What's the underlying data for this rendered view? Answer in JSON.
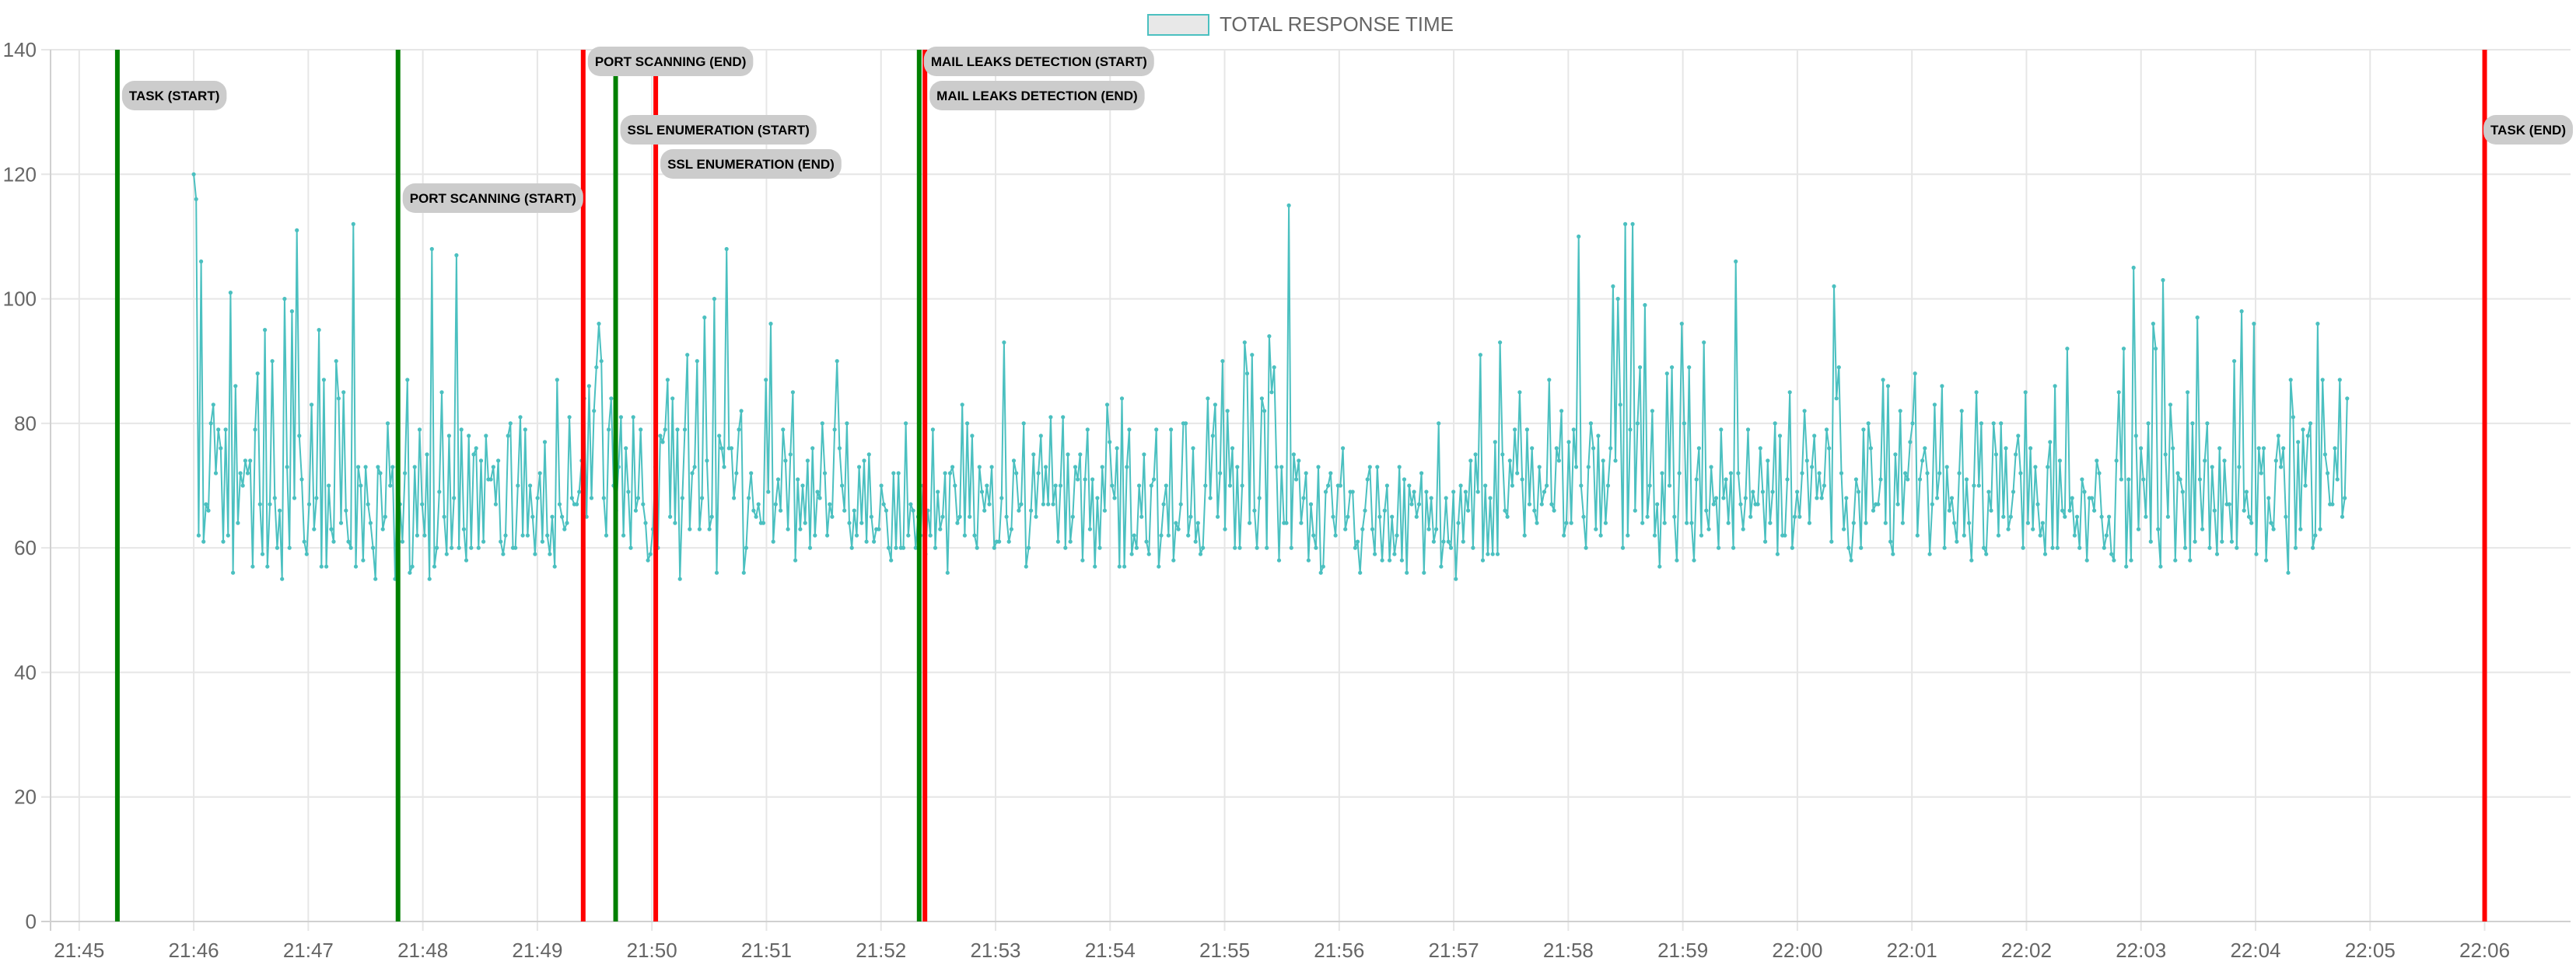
{
  "chart_data": {
    "type": "line",
    "legend": {
      "position": "top",
      "label": "TOTAL RESPONSE TIME"
    },
    "series": [
      {
        "name": "TOTAL RESPONSE TIME",
        "color": "#4bc0c0",
        "start_time": "21:46:00",
        "end_time": "22:04:48",
        "values": [
          120,
          116,
          62,
          106,
          61,
          67,
          66,
          80,
          83,
          72,
          79,
          76,
          61,
          79,
          62,
          101,
          56,
          86,
          64,
          72,
          70,
          74,
          72,
          74,
          57,
          79,
          88,
          67,
          59,
          95,
          57,
          67,
          90,
          68,
          60,
          66,
          55,
          100,
          73,
          60,
          98,
          68,
          111,
          78,
          71,
          61,
          59,
          67,
          83,
          63,
          68,
          95,
          57,
          87,
          57,
          70,
          63,
          61,
          90,
          84,
          64,
          85,
          66,
          61,
          60,
          112,
          57,
          73,
          70,
          58,
          73,
          67,
          64,
          60,
          55,
          73,
          72,
          63,
          65,
          80,
          70,
          73,
          55,
          73,
          67,
          61,
          72,
          87,
          56,
          57,
          73,
          62,
          79,
          67,
          62,
          75,
          55,
          108,
          57,
          60,
          69,
          85,
          65,
          59,
          78,
          60,
          68,
          107,
          60,
          79,
          63,
          58,
          78,
          60,
          75,
          76,
          60,
          74,
          61,
          78,
          71,
          71,
          73,
          67,
          74,
          61,
          59,
          62,
          78,
          80,
          60,
          60,
          70,
          81,
          62,
          79,
          62,
          70,
          65,
          59,
          68,
          72,
          61,
          77,
          62,
          59,
          65,
          57,
          87,
          67,
          65,
          63,
          64,
          81,
          68,
          67,
          67,
          69,
          74,
          84,
          65,
          86,
          68,
          82,
          89,
          96,
          90,
          68,
          62,
          79,
          84,
          70,
          66,
          73,
          81,
          62,
          76,
          69,
          60,
          81,
          66,
          68,
          79,
          67,
          64,
          58,
          59,
          63,
          73,
          60,
          78,
          77,
          79,
          87,
          65,
          84,
          64,
          79,
          55,
          68,
          79,
          91,
          63,
          72,
          73,
          90,
          63,
          68,
          97,
          74,
          63,
          65,
          100,
          56,
          78,
          76,
          73,
          108,
          76,
          76,
          68,
          72,
          79,
          82,
          56,
          60,
          68,
          72,
          66,
          65,
          67,
          64,
          64,
          87,
          69,
          96,
          61,
          67,
          71,
          66,
          79,
          74,
          63,
          75,
          85,
          58,
          71,
          63,
          70,
          64,
          74,
          60,
          76,
          62,
          69,
          68,
          80,
          72,
          62,
          67,
          65,
          79,
          90,
          76,
          70,
          66,
          80,
          64,
          60,
          66,
          62,
          73,
          64,
          74,
          61,
          75,
          65,
          61,
          63,
          63,
          70,
          67,
          66,
          60,
          58,
          72,
          60,
          72,
          60,
          60,
          80,
          62,
          67,
          66,
          60,
          65,
          62,
          70,
          59,
          66,
          62,
          79,
          60,
          69,
          63,
          65,
          72,
          56,
          72,
          73,
          70,
          64,
          65,
          83,
          62,
          80,
          65,
          78,
          62,
          60,
          73,
          69,
          66,
          70,
          67,
          73,
          60,
          61,
          61,
          68,
          93,
          65,
          61,
          63,
          74,
          72,
          66,
          67,
          80,
          57,
          60,
          66,
          75,
          65,
          72,
          78,
          67,
          73,
          67,
          81,
          67,
          70,
          61,
          70,
          81,
          60,
          75,
          61,
          65,
          73,
          71,
          75,
          58,
          71,
          79,
          63,
          71,
          57,
          68,
          60,
          73,
          66,
          83,
          77,
          70,
          68,
          76,
          57,
          84,
          57,
          73,
          79,
          59,
          62,
          60,
          70,
          65,
          75,
          61,
          59,
          70,
          71,
          79,
          57,
          62,
          67,
          70,
          62,
          79,
          58,
          64,
          63,
          67,
          80,
          80,
          62,
          65,
          76,
          61,
          64,
          59,
          60,
          70,
          84,
          68,
          78,
          83,
          65,
          72,
          90,
          63,
          82,
          70,
          76,
          60,
          73,
          60,
          70,
          93,
          88,
          64,
          91,
          66,
          60,
          68,
          84,
          82,
          60,
          94,
          85,
          89,
          73,
          58,
          73,
          64,
          64,
          115,
          60,
          75,
          71,
          74,
          64,
          68,
          72,
          58,
          67,
          62,
          60,
          73,
          56,
          57,
          69,
          70,
          72,
          65,
          62,
          70,
          70,
          76,
          63,
          65,
          69,
          69,
          60,
          61,
          56,
          63,
          66,
          71,
          73,
          63,
          59,
          73,
          65,
          58,
          66,
          70,
          58,
          65,
          59,
          62,
          73,
          58,
          71,
          56,
          70,
          67,
          69,
          65,
          67,
          72,
          56,
          69,
          63,
          68,
          61,
          63,
          80,
          57,
          61,
          68,
          61,
          60,
          69,
          55,
          64,
          70,
          61,
          69,
          66,
          74,
          60,
          75,
          69,
          91,
          58,
          70,
          59,
          68,
          59,
          77,
          59,
          93,
          75,
          66,
          65,
          74,
          70,
          79,
          72,
          85,
          71,
          62,
          79,
          67,
          76,
          66,
          64,
          73,
          67,
          69,
          70,
          87,
          67,
          66,
          76,
          74,
          82,
          62,
          64,
          77,
          64,
          79,
          73,
          110,
          70,
          65,
          60,
          73,
          80,
          76,
          63,
          78,
          62,
          74,
          64,
          70,
          76,
          102,
          74,
          100,
          83,
          60,
          112,
          62,
          79,
          112,
          66,
          80,
          89,
          64,
          99,
          65,
          70,
          82,
          62,
          67,
          57,
          72,
          64,
          88,
          70,
          89,
          65,
          58,
          72,
          96,
          80,
          64,
          89,
          64,
          58,
          71,
          76,
          62,
          93,
          66,
          63,
          73,
          67,
          68,
          60,
          79,
          68,
          71,
          64,
          72,
          60,
          106,
          72,
          67,
          63,
          68,
          79,
          65,
          69,
          67,
          67,
          76,
          69,
          61,
          74,
          64,
          69,
          80,
          59,
          78,
          62,
          62,
          71,
          85,
          60,
          65,
          69,
          65,
          72,
          82,
          74,
          64,
          73,
          78,
          68,
          72,
          68,
          70,
          79,
          76,
          61,
          102,
          84,
          89,
          72,
          63,
          68,
          60,
          58,
          64,
          71,
          69,
          60,
          79,
          64,
          80,
          76,
          66,
          67,
          67,
          71,
          87,
          64,
          86,
          61,
          59,
          75,
          67,
          82,
          64,
          72,
          71,
          77,
          80,
          88,
          62,
          71,
          74,
          76,
          72,
          59,
          67,
          83,
          68,
          72,
          86,
          60,
          73,
          66,
          68,
          64,
          61,
          72,
          82,
          62,
          71,
          64,
          58,
          70,
          85,
          70,
          80,
          60,
          59,
          69,
          66,
          80,
          75,
          62,
          80,
          65,
          76,
          63,
          65,
          69,
          75,
          78,
          72,
          60,
          85,
          64,
          76,
          63,
          73,
          67,
          62,
          64,
          59,
          73,
          77,
          60,
          86,
          60,
          74,
          66,
          65,
          92,
          66,
          68,
          62,
          65,
          60,
          71,
          69,
          58,
          68,
          68,
          66,
          74,
          72,
          65,
          60,
          62,
          65,
          59,
          58,
          74,
          85,
          71,
          92,
          57,
          71,
          58,
          105,
          78,
          63,
          76,
          71,
          65,
          80,
          61,
          96,
          92,
          63,
          57,
          103,
          75,
          65,
          83,
          76,
          58,
          72,
          71,
          69,
          60,
          85,
          58,
          80,
          61,
          97,
          71,
          63,
          74,
          80,
          60,
          73,
          66,
          59,
          76,
          61,
          74,
          67,
          67,
          61,
          90,
          60,
          73,
          98,
          66,
          69,
          65,
          64,
          96,
          59,
          76,
          72,
          76,
          58,
          68,
          64,
          63,
          74,
          78,
          73,
          76,
          65,
          56,
          87,
          81,
          60,
          77,
          63,
          79,
          70,
          78,
          80,
          60,
          62,
          96,
          63,
          87,
          75,
          72,
          67,
          67,
          76,
          71,
          87,
          65,
          68,
          84
        ]
      }
    ],
    "x_axis": {
      "type": "time",
      "min": "21:44:45",
      "max": "22:06:45",
      "ticks": [
        "21:45",
        "21:46",
        "21:47",
        "21:48",
        "21:49",
        "21:50",
        "21:51",
        "21:52",
        "21:53",
        "21:54",
        "21:55",
        "21:56",
        "21:57",
        "21:58",
        "21:59",
        "22:00",
        "22:01",
        "22:02",
        "22:03",
        "22:04",
        "22:05",
        "22:06"
      ]
    },
    "y_axis": {
      "min": 0,
      "max": 140,
      "ticks": [
        0,
        20,
        40,
        60,
        80,
        100,
        120,
        140
      ]
    },
    "grid": true,
    "annotations": [
      {
        "time": "21:45:20",
        "label": "TASK (START)",
        "color": "#008000",
        "label_level": 1
      },
      {
        "time": "21:47:47",
        "label": "PORT SCANNING (START)",
        "color": "#008000",
        "label_level": 4
      },
      {
        "time": "21:49:24",
        "label": "PORT SCANNING (END)",
        "color": "#ff0000",
        "label_level": 0
      },
      {
        "time": "21:49:41",
        "label": "SSL ENUMERATION (START)",
        "color": "#008000",
        "label_level": 2
      },
      {
        "time": "21:50:02",
        "label": "SSL ENUMERATION (END)",
        "color": "#ff0000",
        "label_level": 3
      },
      {
        "time": "21:52:20",
        "label": "MAIL LEAKS DETECTION (START)",
        "color": "#008000",
        "label_level": 0
      },
      {
        "time": "21:52:23",
        "label": "MAIL LEAKS DETECTION (END)",
        "color": "#ff0000",
        "label_level": 1
      },
      {
        "time": "22:06:00",
        "label": "TASK (END)",
        "color": "#ff0000",
        "label_level": 2
      }
    ]
  }
}
